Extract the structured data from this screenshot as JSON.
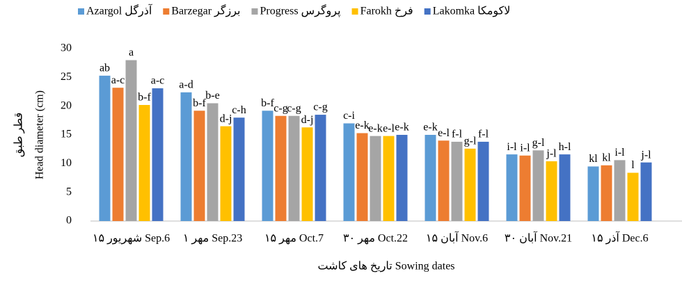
{
  "chart_data": {
    "type": "bar",
    "categories": [
      "۱۵ شهریور Sep.6",
      "۱ مهر Sep.23",
      "۱۵ مهر Oct.7",
      "۳۰ مهر Oct.22",
      "۱۵ آبان Nov.6",
      "۳۰ آبان Nov.21",
      "۱۵ آذر Dec.6"
    ],
    "series": [
      {
        "name": "Azargol آذرگل",
        "color": "#5b9bd5",
        "values": [
          25.3,
          22.4,
          19.2,
          17.0,
          15.0,
          11.6,
          9.5
        ],
        "letters": [
          "ab",
          "a-d",
          "b-f",
          "c-i",
          "e-k",
          "i-l",
          "kl"
        ]
      },
      {
        "name": "Barzegar برزگر",
        "color": "#ed7d31",
        "values": [
          23.2,
          19.2,
          18.3,
          15.3,
          14.0,
          11.4,
          9.7
        ],
        "letters": [
          "a-c",
          "b-f",
          "c-g",
          "e-k",
          "e-l",
          "i-l",
          "kl"
        ]
      },
      {
        "name": "Progress پروگرس",
        "color": "#a5a5a5",
        "values": [
          28.0,
          20.5,
          18.3,
          14.8,
          13.8,
          12.3,
          10.6
        ],
        "letters": [
          "a",
          "b-e",
          "c-g",
          "e-k",
          "f-l",
          "g-l",
          "i-l"
        ]
      },
      {
        "name": "Farokh فرخ",
        "color": "#ffc000",
        "values": [
          20.2,
          16.5,
          16.3,
          14.8,
          12.6,
          10.4,
          8.4
        ],
        "letters": [
          "b-f",
          "d-j",
          "d-j",
          "e-l",
          "g-l",
          "j-l",
          "l"
        ]
      },
      {
        "name": "Lakomka لاکومکا",
        "color": "#4472c4",
        "values": [
          23.1,
          18.0,
          18.5,
          15.0,
          13.8,
          11.6,
          10.2
        ],
        "letters": [
          "a-c",
          "c-h",
          "c-g",
          "e-k",
          "f-l",
          "h-l",
          "j-l"
        ]
      }
    ],
    "y_label_fa": "قطر طبق",
    "y_label": "Head diameter (cm)",
    "x_label": "تاریخ های کاشت Sowing dates",
    "ylim": [
      0,
      30
    ],
    "yticks": [
      0,
      5,
      10,
      15,
      20,
      25,
      30
    ],
    "grid": false,
    "legend": "top"
  }
}
